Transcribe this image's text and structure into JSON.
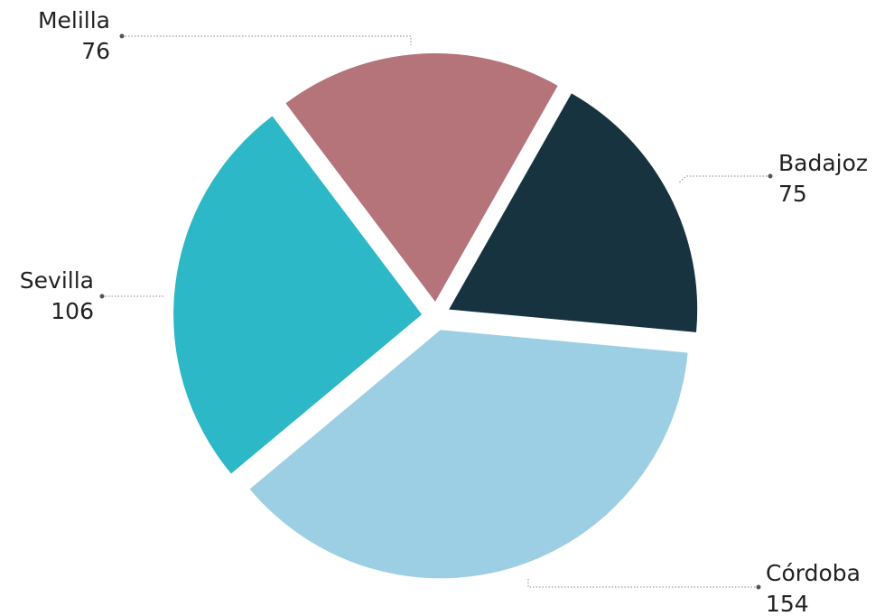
{
  "chart_data": {
    "type": "pie",
    "categories": [
      "Melilla",
      "Badajoz",
      "Córdoba",
      "Sevilla"
    ],
    "values": [
      76,
      75,
      154,
      106
    ],
    "colors": [
      "#b5737a",
      "#17333f",
      "#9ccfe3",
      "#2cb8c6"
    ]
  }
}
